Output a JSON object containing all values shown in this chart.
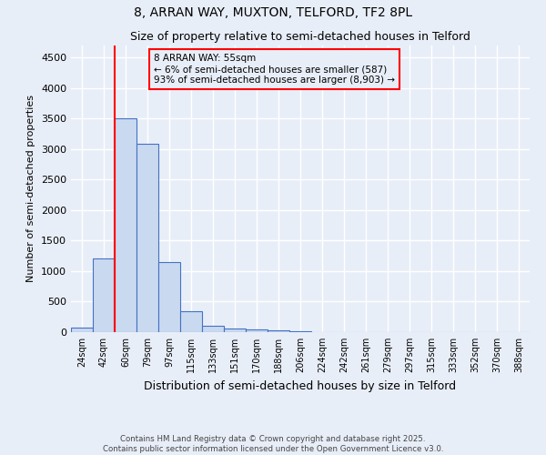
{
  "title1": "8, ARRAN WAY, MUXTON, TELFORD, TF2 8PL",
  "title2": "Size of property relative to semi-detached houses in Telford",
  "xlabel": "Distribution of semi-detached houses by size in Telford",
  "ylabel": "Number of semi-detached properties",
  "categories": [
    "24sqm",
    "42sqm",
    "60sqm",
    "79sqm",
    "97sqm",
    "115sqm",
    "133sqm",
    "151sqm",
    "170sqm",
    "188sqm",
    "206sqm",
    "224sqm",
    "242sqm",
    "261sqm",
    "279sqm",
    "297sqm",
    "315sqm",
    "333sqm",
    "352sqm",
    "370sqm",
    "388sqm"
  ],
  "values": [
    80,
    1210,
    3500,
    3090,
    1150,
    340,
    110,
    60,
    50,
    30,
    22,
    0,
    0,
    0,
    0,
    0,
    0,
    0,
    0,
    0,
    0
  ],
  "bar_color": "#c9d9f0",
  "bar_edge_color": "#4472c4",
  "annotation_title": "8 ARRAN WAY: 55sqm",
  "annotation_line1": "← 6% of semi-detached houses are smaller (587)",
  "annotation_line2": "93% of semi-detached houses are larger (8,903) →",
  "ylim": [
    0,
    4700
  ],
  "yticks": [
    0,
    500,
    1000,
    1500,
    2000,
    2500,
    3000,
    3500,
    4000,
    4500
  ],
  "footer1": "Contains HM Land Registry data © Crown copyright and database right 2025.",
  "footer2": "Contains public sector information licensed under the Open Government Licence v3.0.",
  "bg_color": "#e8eef8",
  "grid_color": "#ffffff"
}
